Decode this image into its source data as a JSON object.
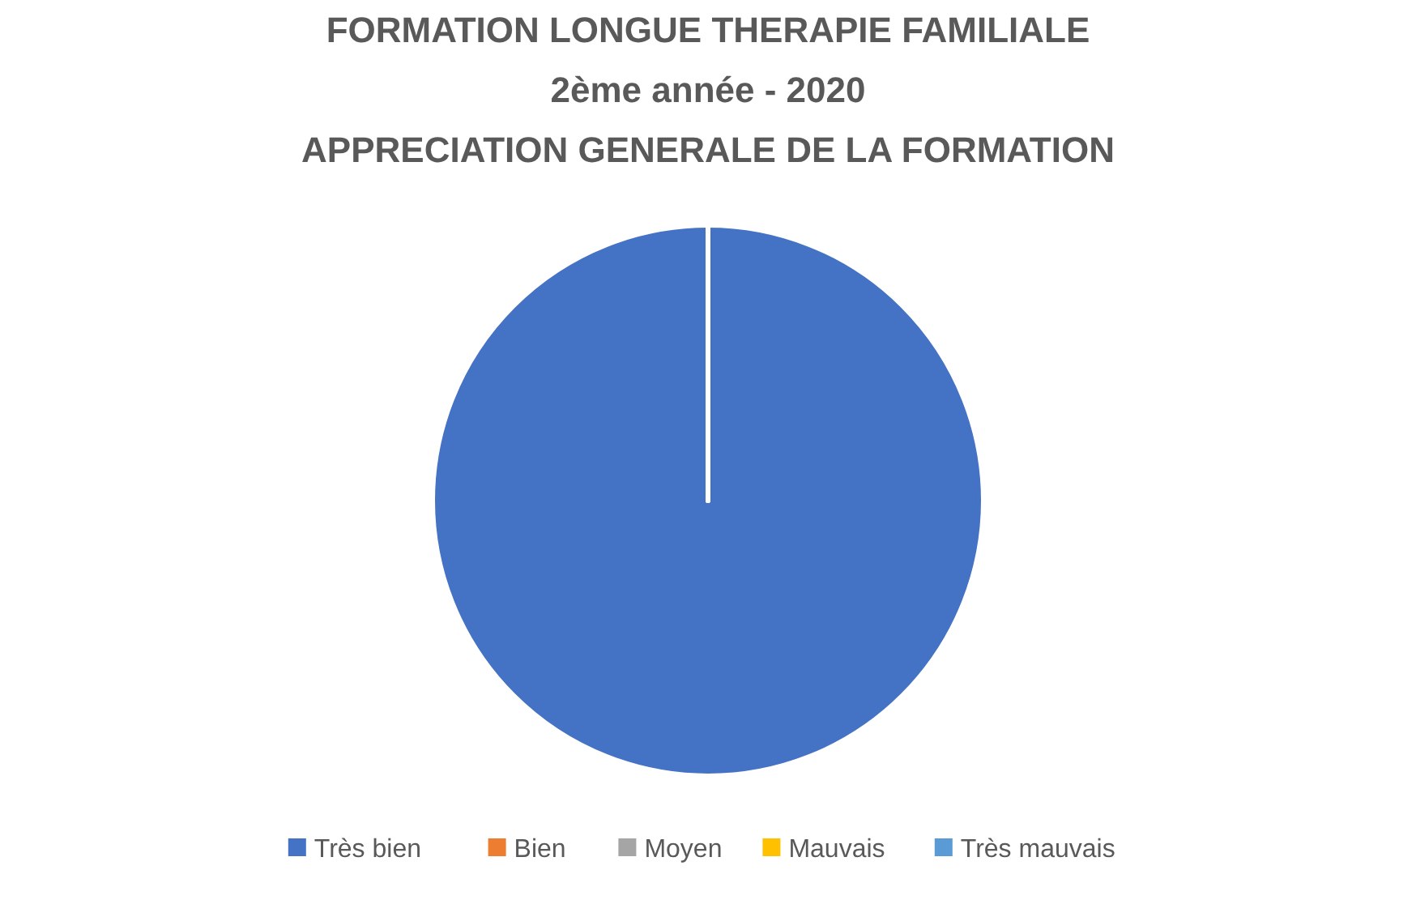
{
  "chart_data": {
    "type": "pie",
    "title": "FORMATION LONGUE THERAPIE FAMILIALE\n2ème année - 2020\nAPPRECIATION GENERALE DE LA FORMATION",
    "categories": [
      "Très bien",
      "Bien",
      "Moyen",
      "Mauvais",
      "Très mauvais"
    ],
    "values": [
      100,
      0,
      0,
      0,
      0
    ],
    "colors": [
      "#4472c4",
      "#ed7d31",
      "#a5a5a5",
      "#ffc000",
      "#5b9bd5"
    ],
    "legend": "bottom"
  }
}
